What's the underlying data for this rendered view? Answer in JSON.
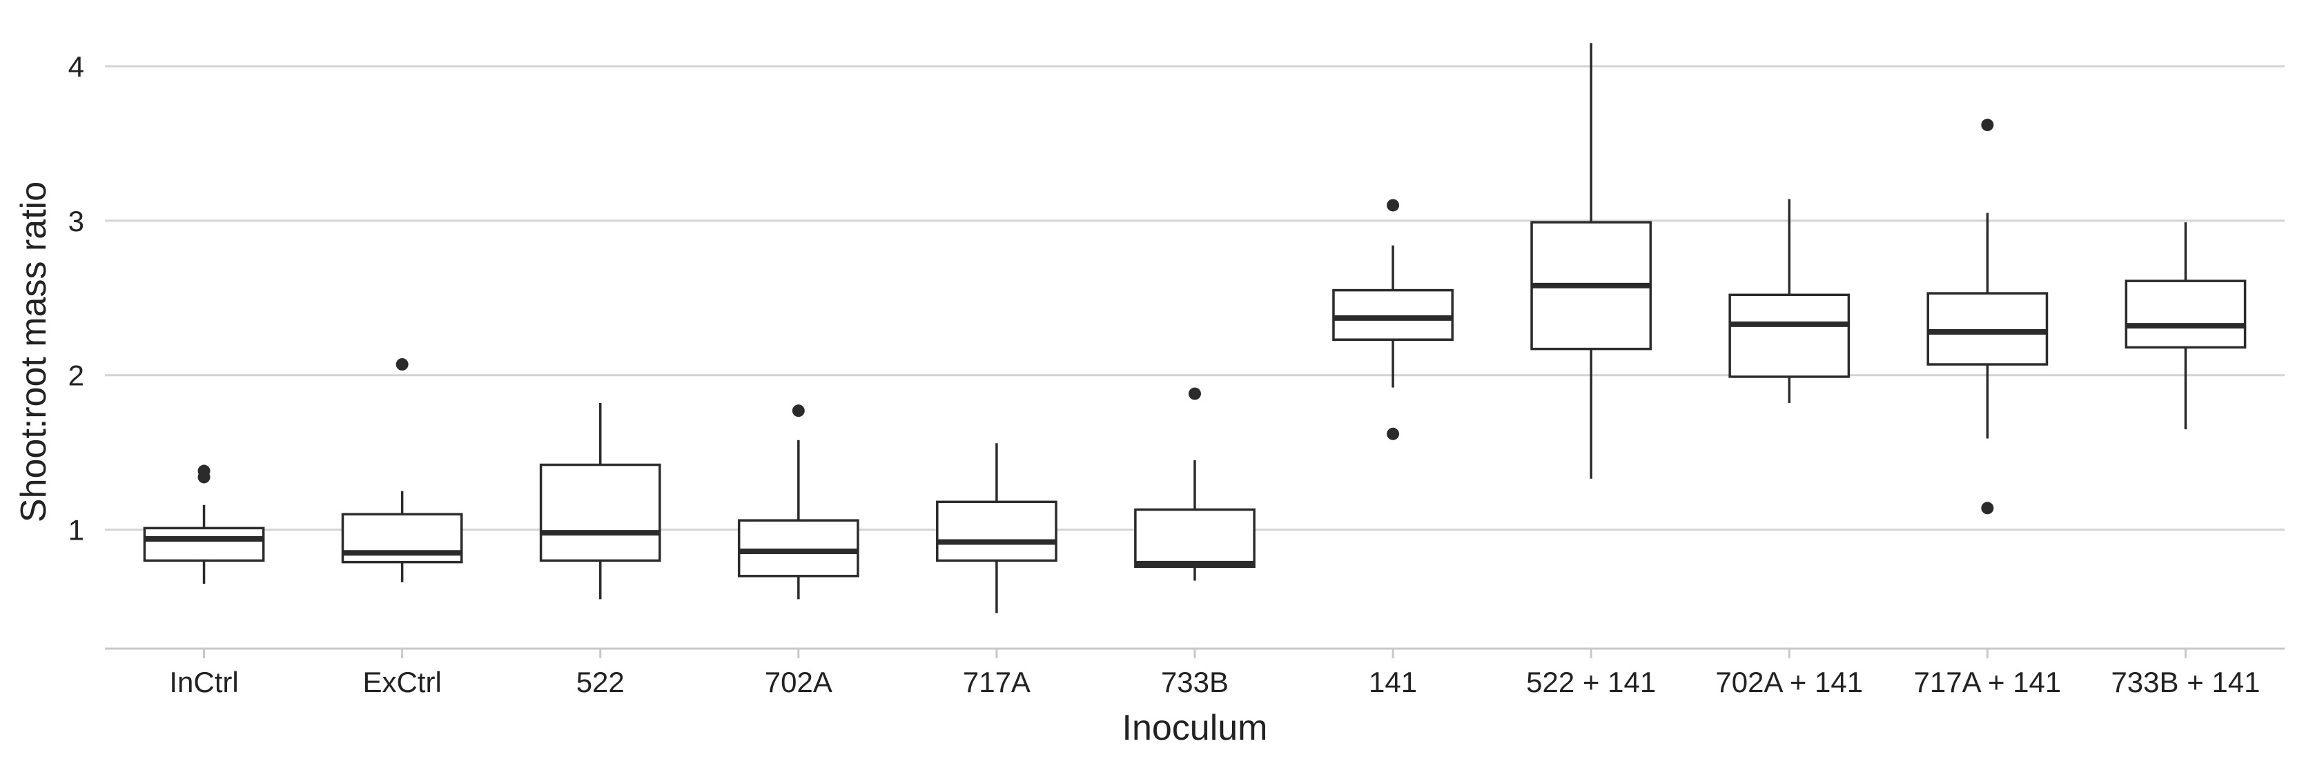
{
  "chart_data": {
    "type": "boxplot",
    "title": "",
    "xlabel": "Inoculum",
    "ylabel": "Shoot:root mass ratio",
    "ylim": [
      0.23,
      4.25
    ],
    "yticks": [
      1,
      2,
      3,
      4
    ],
    "grid": true,
    "legend": "none",
    "categories": [
      "InCtrl",
      "ExCtrl",
      "522",
      "702A",
      "717A",
      "733B",
      "141",
      "522 + 141",
      "702A + 141",
      "717A + 141",
      "733B + 141"
    ],
    "boxes": [
      {
        "category": "InCtrl",
        "whisker_low": 0.65,
        "q1": 0.8,
        "median": 0.94,
        "q3": 1.01,
        "whisker_high": 1.16,
        "outliers": [
          1.34,
          1.38
        ]
      },
      {
        "category": "ExCtrl",
        "whisker_low": 0.66,
        "q1": 0.79,
        "median": 0.85,
        "q3": 1.1,
        "whisker_high": 1.25,
        "outliers": [
          2.07
        ]
      },
      {
        "category": "522",
        "whisker_low": 0.55,
        "q1": 0.8,
        "median": 0.98,
        "q3": 1.42,
        "whisker_high": 1.82,
        "outliers": []
      },
      {
        "category": "702A",
        "whisker_low": 0.55,
        "q1": 0.7,
        "median": 0.86,
        "q3": 1.06,
        "whisker_high": 1.58,
        "outliers": [
          1.77
        ]
      },
      {
        "category": "717A",
        "whisker_low": 0.46,
        "q1": 0.8,
        "median": 0.92,
        "q3": 1.18,
        "whisker_high": 1.56,
        "outliers": []
      },
      {
        "category": "733B",
        "whisker_low": 0.67,
        "q1": 0.76,
        "median": 0.78,
        "q3": 1.13,
        "whisker_high": 1.45,
        "outliers": [
          1.88
        ]
      },
      {
        "category": "141",
        "whisker_low": 1.92,
        "q1": 2.23,
        "median": 2.37,
        "q3": 2.55,
        "whisker_high": 2.84,
        "outliers": [
          1.62,
          3.1
        ]
      },
      {
        "category": "522 + 141",
        "whisker_low": 1.33,
        "q1": 2.17,
        "median": 2.58,
        "q3": 2.99,
        "whisker_high": 4.15,
        "outliers": []
      },
      {
        "category": "702A + 141",
        "whisker_low": 1.82,
        "q1": 1.99,
        "median": 2.33,
        "q3": 2.52,
        "whisker_high": 3.14,
        "outliers": []
      },
      {
        "category": "717A + 141",
        "whisker_low": 1.59,
        "q1": 2.07,
        "median": 2.28,
        "q3": 2.53,
        "whisker_high": 3.05,
        "outliers": [
          1.14,
          3.62
        ]
      },
      {
        "category": "733B + 141",
        "whisker_low": 1.65,
        "q1": 2.18,
        "median": 2.32,
        "q3": 2.61,
        "whisker_high": 2.99,
        "outliers": []
      }
    ],
    "colors": {
      "box_line": "#2b2b2b",
      "box_fill": "#ffffff",
      "grid": "#d4d4d4",
      "axis": "#c8c8c8",
      "text": "#222222"
    }
  }
}
